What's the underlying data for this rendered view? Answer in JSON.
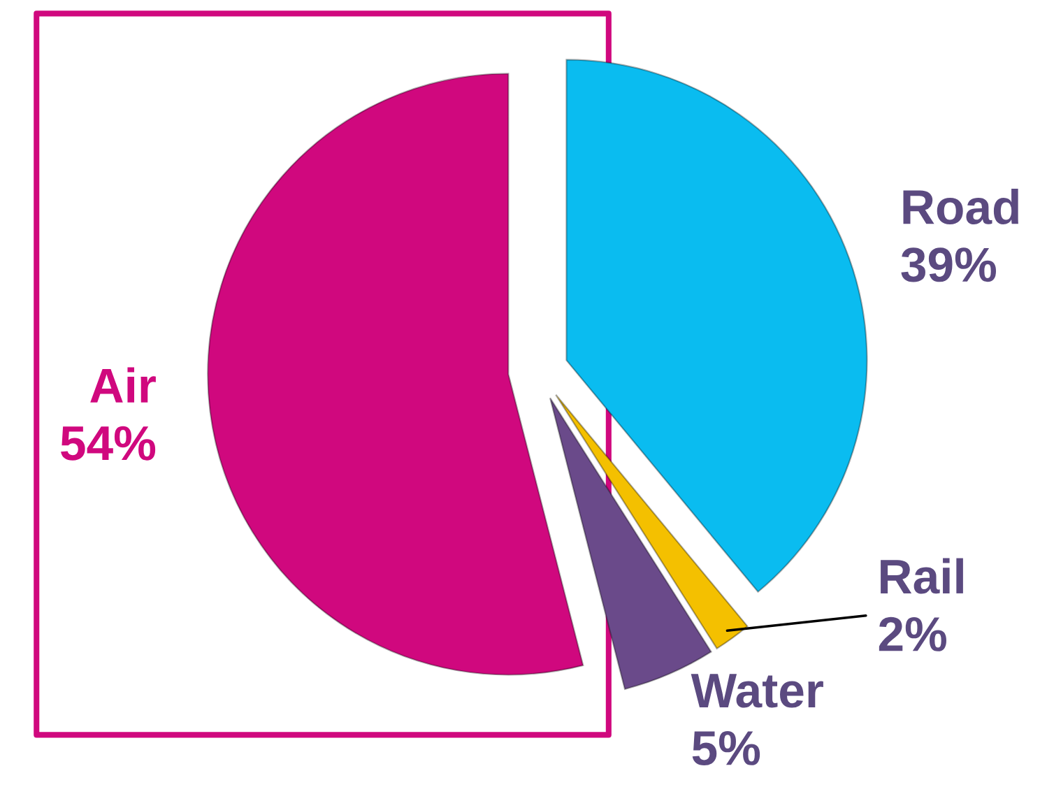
{
  "chart_data": {
    "type": "pie",
    "categories": [
      "Road",
      "Rail",
      "Water",
      "Air"
    ],
    "values": [
      39,
      2,
      5,
      54
    ],
    "value_labels": [
      "39%",
      "2%",
      "5%",
      "54%"
    ],
    "colors": [
      "#0abcf0",
      "#f4c000",
      "#6a4a8a",
      "#d0087e"
    ]
  }
}
